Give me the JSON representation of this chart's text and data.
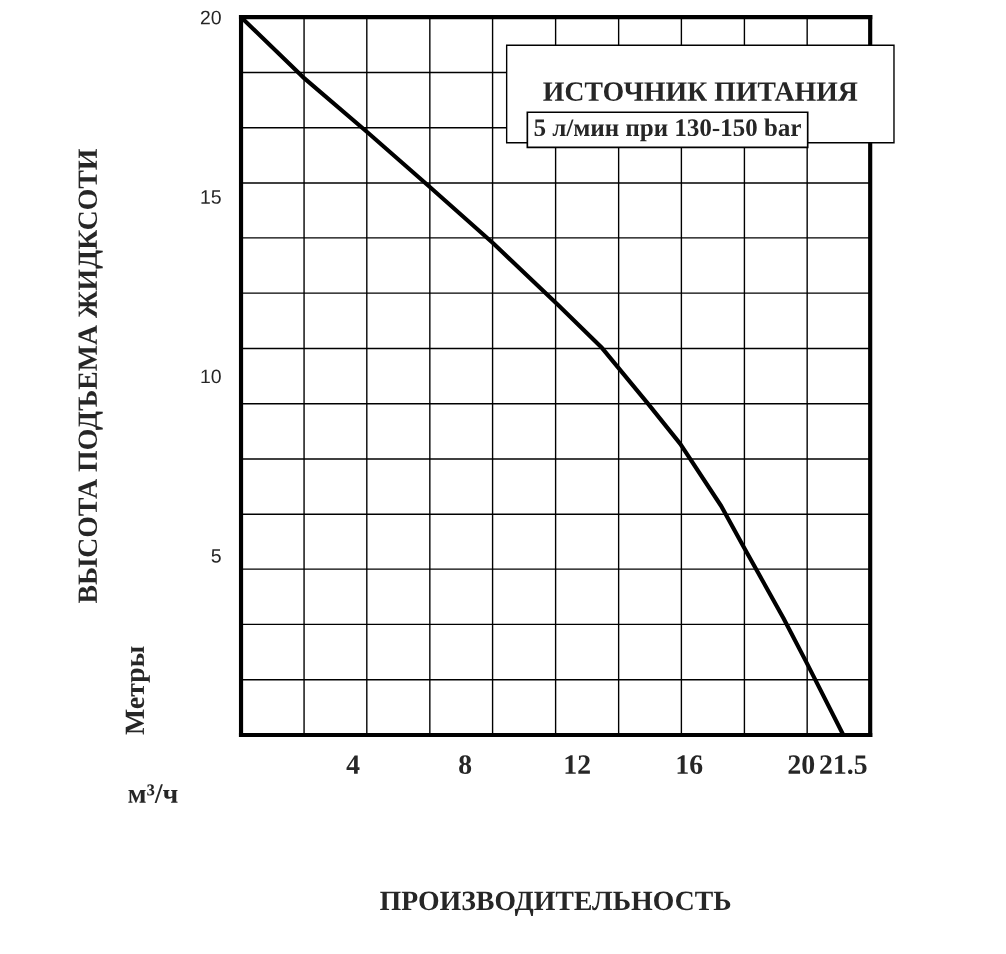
{
  "chart_data": {
    "type": "line",
    "xlabel": "ПРОИЗВОДИТЕЛЬНОСТЬ",
    "ylabel": "ВЫСОТА ПОДЪЕМА ЖИДКСОТИ",
    "annotations": [
      "ИСТОЧНИК ПИТАНИЯ",
      "5 л/мин при 130-150 bar",
      "Метры",
      "м³/ч"
    ],
    "series": [
      {
        "color": "#000000",
        "x": [
          0,
          2.21,
          4.5,
          6.75,
          9.0,
          11.32,
          12.89,
          14.57,
          15.68,
          17.14,
          17.93,
          19.36,
          20.18,
          21.5
        ],
        "values": [
          20,
          18.33,
          16.8,
          15.26,
          13.7,
          11.98,
          10.78,
          9.19,
          8.11,
          6.38,
          5.26,
          3.26,
          2.03,
          0
        ]
      }
    ],
    "xlim": [
      0,
      22.46
    ],
    "ylim": [
      0,
      20
    ],
    "xticks": [
      {
        "value": 2.25,
        "label": null
      },
      4,
      {
        "value": 4.49,
        "label": null
      },
      {
        "value": 6.74,
        "label": null
      },
      8,
      {
        "value": 8.98,
        "label": null
      },
      {
        "value": 11.23,
        "label": null
      },
      12,
      {
        "value": 13.48,
        "label": null
      },
      {
        "value": 15.72,
        "label": null
      },
      16,
      {
        "value": 17.97,
        "label": null
      },
      20,
      {
        "value": 20.21,
        "label": null
      },
      21.5
    ],
    "yticks": [
      {
        "value": 1.54,
        "label": null
      },
      {
        "value": 3.08,
        "label": null
      },
      {
        "value": 4.62,
        "label": null
      },
      5,
      {
        "value": 6.15,
        "label": null
      },
      {
        "value": 7.69,
        "label": null
      },
      {
        "value": 9.23,
        "label": null
      },
      10,
      {
        "value": 10.77,
        "label": null
      },
      {
        "value": 12.31,
        "label": null
      },
      {
        "value": 13.85,
        "label": null
      },
      15,
      {
        "value": 15.38,
        "label": null
      },
      {
        "value": 16.92,
        "label": null
      },
      {
        "value": 18.46,
        "label": null
      },
      20
    ],
    "grid": true,
    "marker": "none",
    "line_style": "solid"
  }
}
